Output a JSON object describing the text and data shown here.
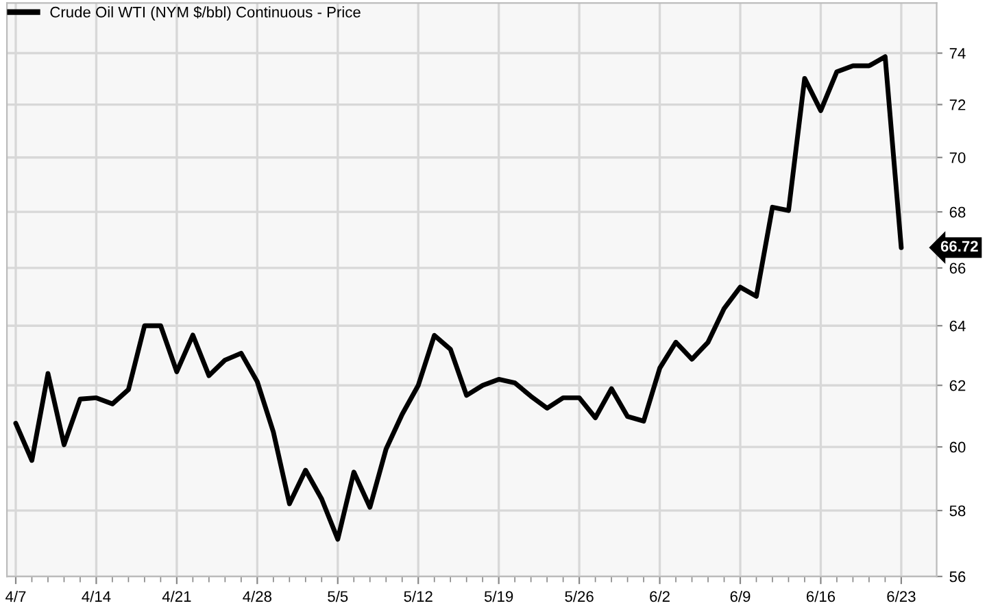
{
  "chart_data": {
    "type": "line",
    "categories": [
      "4/7",
      null,
      null,
      null,
      null,
      "4/14",
      null,
      null,
      null,
      null,
      "4/21",
      null,
      null,
      null,
      null,
      "4/28",
      null,
      null,
      null,
      null,
      "5/5",
      null,
      null,
      null,
      null,
      "5/12",
      null,
      null,
      null,
      null,
      "5/19",
      null,
      null,
      null,
      null,
      "5/26",
      null,
      null,
      null,
      null,
      "6/2",
      null,
      null,
      null,
      null,
      "6/9",
      null,
      null,
      null,
      null,
      "6/16",
      null,
      null,
      null,
      null,
      "6/23"
    ],
    "series": [
      {
        "name": "Crude Oil WTI (NYM $/bbl) Continuous - Price",
        "color": "#000000",
        "values": [
          60.76,
          59.57,
          62.39,
          60.07,
          61.55,
          61.59,
          61.39,
          61.86,
          64.0,
          64.0,
          62.45,
          63.68,
          62.32,
          62.84,
          63.07,
          62.12,
          60.48,
          58.21,
          59.26,
          58.36,
          57.12,
          59.2,
          58.1,
          59.93,
          61.05,
          62.0,
          63.67,
          63.2,
          61.67,
          62.0,
          62.2,
          62.08,
          61.64,
          61.25,
          61.59,
          61.59,
          60.94,
          61.89,
          60.98,
          60.83,
          62.57,
          63.44,
          62.87,
          63.44,
          64.59,
          65.33,
          65.01,
          68.17,
          68.05,
          73.01,
          71.77,
          73.27,
          73.5,
          73.5,
          73.86,
          66.72
        ]
      }
    ],
    "log": "y",
    "ylim": [
      56,
      76
    ],
    "yticks": [
      56,
      58,
      60,
      62,
      64,
      66,
      68,
      70,
      72,
      74
    ],
    "grid": true,
    "legend": "top left",
    "marker": "none",
    "line_style": "solid",
    "annotations": [
      "66.72"
    ]
  }
}
